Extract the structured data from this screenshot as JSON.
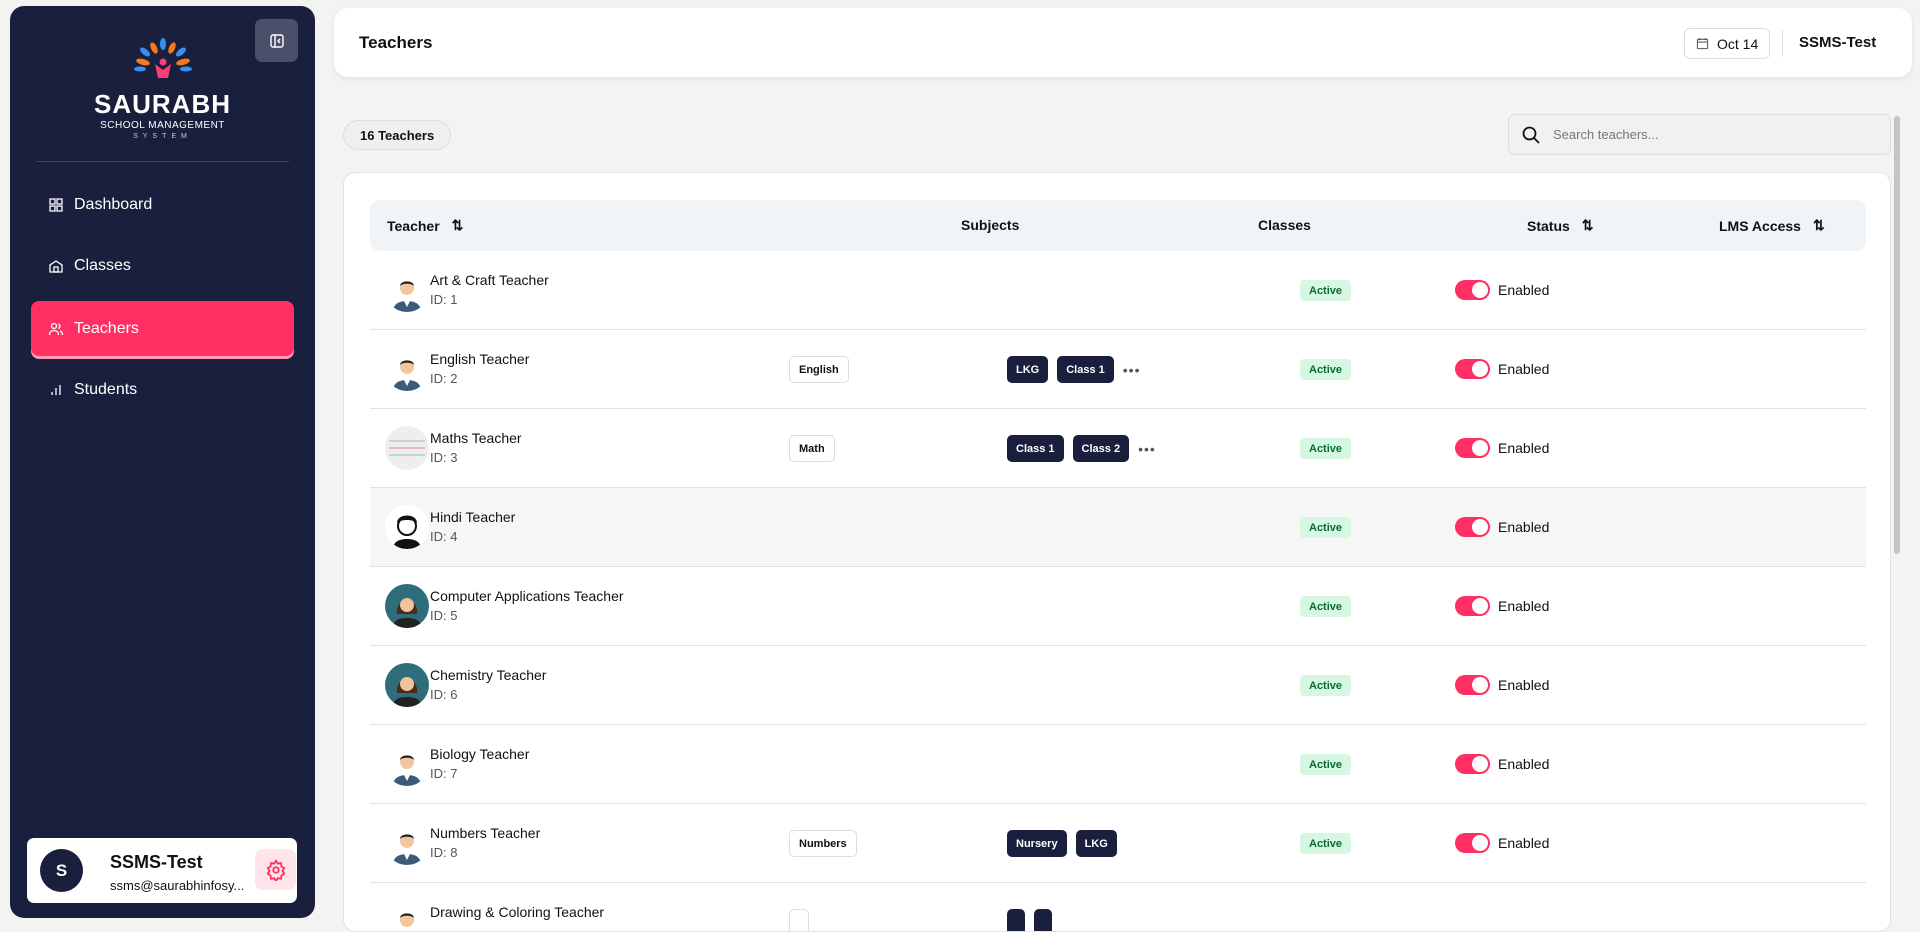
{
  "sidebar": {
    "logo": {
      "brand": "SAURABH",
      "sub": "SCHOOL MANAGEMENT",
      "sys": "SYSTEM"
    },
    "items": [
      {
        "label": "Dashboard",
        "icon": "dashboard-icon"
      },
      {
        "label": "Classes",
        "icon": "school-icon"
      },
      {
        "label": "Teachers",
        "icon": "users-icon",
        "active": true
      },
      {
        "label": "Students",
        "icon": "bar-chart-icon"
      }
    ],
    "user": {
      "initial": "S",
      "name": "SSMS-Test",
      "email": "ssms@saurabhinfosy..."
    }
  },
  "header": {
    "title": "Teachers",
    "date": "Oct 14",
    "user": "SSMS-Test"
  },
  "toolbar": {
    "count": "16 Teachers",
    "search_placeholder": "Search teachers..."
  },
  "table": {
    "columns": [
      "Teacher",
      "Subjects",
      "Classes",
      "Status",
      "LMS Access"
    ],
    "rows": [
      {
        "name": "Art & Craft Teacher",
        "id": "ID: 1",
        "subjects": [],
        "classes": [],
        "more": false,
        "status": "Active",
        "lms": "Enabled",
        "avatar": "male"
      },
      {
        "name": "English Teacher",
        "id": "ID: 2",
        "subjects": [
          "English"
        ],
        "classes": [
          "LKG",
          "Class 1"
        ],
        "more": true,
        "status": "Active",
        "lms": "Enabled",
        "avatar": "male"
      },
      {
        "name": "Maths Teacher",
        "id": "ID: 3",
        "subjects": [
          "Math"
        ],
        "classes": [
          "Class 1",
          "Class 2"
        ],
        "more": true,
        "status": "Active",
        "lms": "Enabled",
        "avatar": "notebook"
      },
      {
        "name": "Hindi Teacher",
        "id": "ID: 4",
        "subjects": [],
        "classes": [],
        "more": false,
        "status": "Active",
        "lms": "Enabled",
        "avatar": "cartoon"
      },
      {
        "name": "Computer Applications Teacher",
        "id": "ID: 5",
        "subjects": [],
        "classes": [],
        "more": false,
        "status": "Active",
        "lms": "Enabled",
        "avatar": "female"
      },
      {
        "name": "Chemistry Teacher",
        "id": "ID: 6",
        "subjects": [],
        "classes": [],
        "more": false,
        "status": "Active",
        "lms": "Enabled",
        "avatar": "female"
      },
      {
        "name": "Biology Teacher",
        "id": "ID: 7",
        "subjects": [],
        "classes": [],
        "more": false,
        "status": "Active",
        "lms": "Enabled",
        "avatar": "male"
      },
      {
        "name": "Numbers Teacher",
        "id": "ID: 8",
        "subjects": [
          "Numbers"
        ],
        "classes": [
          "Nursery",
          "LKG"
        ],
        "more": false,
        "status": "Active",
        "lms": "Enabled",
        "avatar": "male"
      },
      {
        "name": "Drawing & Coloring Teacher",
        "id": "",
        "subjects": [
          ""
        ],
        "classes": [
          "",
          ""
        ],
        "more": false,
        "status": "",
        "lms": "",
        "avatar": "male"
      }
    ]
  },
  "colors": {
    "sidebar": "#1a1f3d",
    "accent": "#ff2f63",
    "active_badge": "#d6f8e3"
  }
}
